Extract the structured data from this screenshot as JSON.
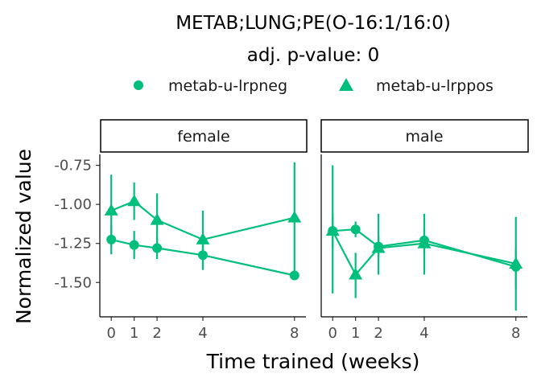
{
  "chart_data": {
    "type": "line",
    "title": "METAB;LUNG;PE(O-16:1/16:0)",
    "subtitle": "adj. p-value: 0",
    "xlabel": "Time trained (weeks)",
    "ylabel": "Normalized value",
    "x_ticks": [
      0,
      1,
      2,
      4,
      8
    ],
    "y_ticks": [
      -0.75,
      -1.0,
      -1.25,
      -1.5
    ],
    "y_tick_labels": [
      "-0.75",
      "-1.00",
      "-1.25",
      "-1.50"
    ],
    "ylim": [
      -1.72,
      -0.68
    ],
    "xlim": [
      -0.5,
      8.5
    ],
    "color": "#00BF7D",
    "legend_position": "top",
    "legend": [
      {
        "name": "metab-u-lrpneg",
        "shape": "circle"
      },
      {
        "name": "metab-u-lrppos",
        "shape": "triangle"
      }
    ],
    "panels": [
      {
        "label": "female",
        "series": [
          {
            "name": "metab-u-lrpneg",
            "shape": "circle",
            "x": [
              0,
              1,
              2,
              4,
              8
            ],
            "y": [
              -1.225,
              -1.26,
              -1.28,
              -1.325,
              -1.455
            ],
            "ymin": [
              -1.32,
              -1.35,
              -1.35,
              -1.42,
              -1.48
            ],
            "ymax": [
              -1.13,
              -1.17,
              -1.21,
              -1.23,
              -1.42
            ]
          },
          {
            "name": "metab-u-lrppos",
            "shape": "triangle",
            "x": [
              0,
              1,
              2,
              4,
              8
            ],
            "y": [
              -1.04,
              -0.98,
              -1.1,
              -1.225,
              -1.085
            ],
            "ymin": [
              -1.27,
              -1.1,
              -1.28,
              -1.41,
              -1.45
            ],
            "ymax": [
              -0.81,
              -0.86,
              -0.93,
              -1.04,
              -0.73
            ]
          }
        ]
      },
      {
        "label": "male",
        "series": [
          {
            "name": "metab-u-lrpneg",
            "shape": "circle",
            "x": [
              0,
              1,
              2,
              4,
              8
            ],
            "y": [
              -1.17,
              -1.16,
              -1.27,
              -1.23,
              -1.4
            ],
            "ymin": [
              -1.28,
              -1.21,
              -1.34,
              -1.31,
              -1.54
            ],
            "ymax": [
              -1.06,
              -1.11,
              -1.2,
              -1.15,
              -1.28
            ]
          },
          {
            "name": "metab-u-lrppos",
            "shape": "triangle",
            "x": [
              0,
              1,
              2,
              4,
              8
            ],
            "y": [
              -1.17,
              -1.45,
              -1.28,
              -1.25,
              -1.38
            ],
            "ymin": [
              -1.57,
              -1.6,
              -1.45,
              -1.45,
              -1.68
            ],
            "ymax": [
              -0.75,
              -1.31,
              -1.06,
              -1.06,
              -1.08
            ]
          }
        ]
      }
    ]
  }
}
